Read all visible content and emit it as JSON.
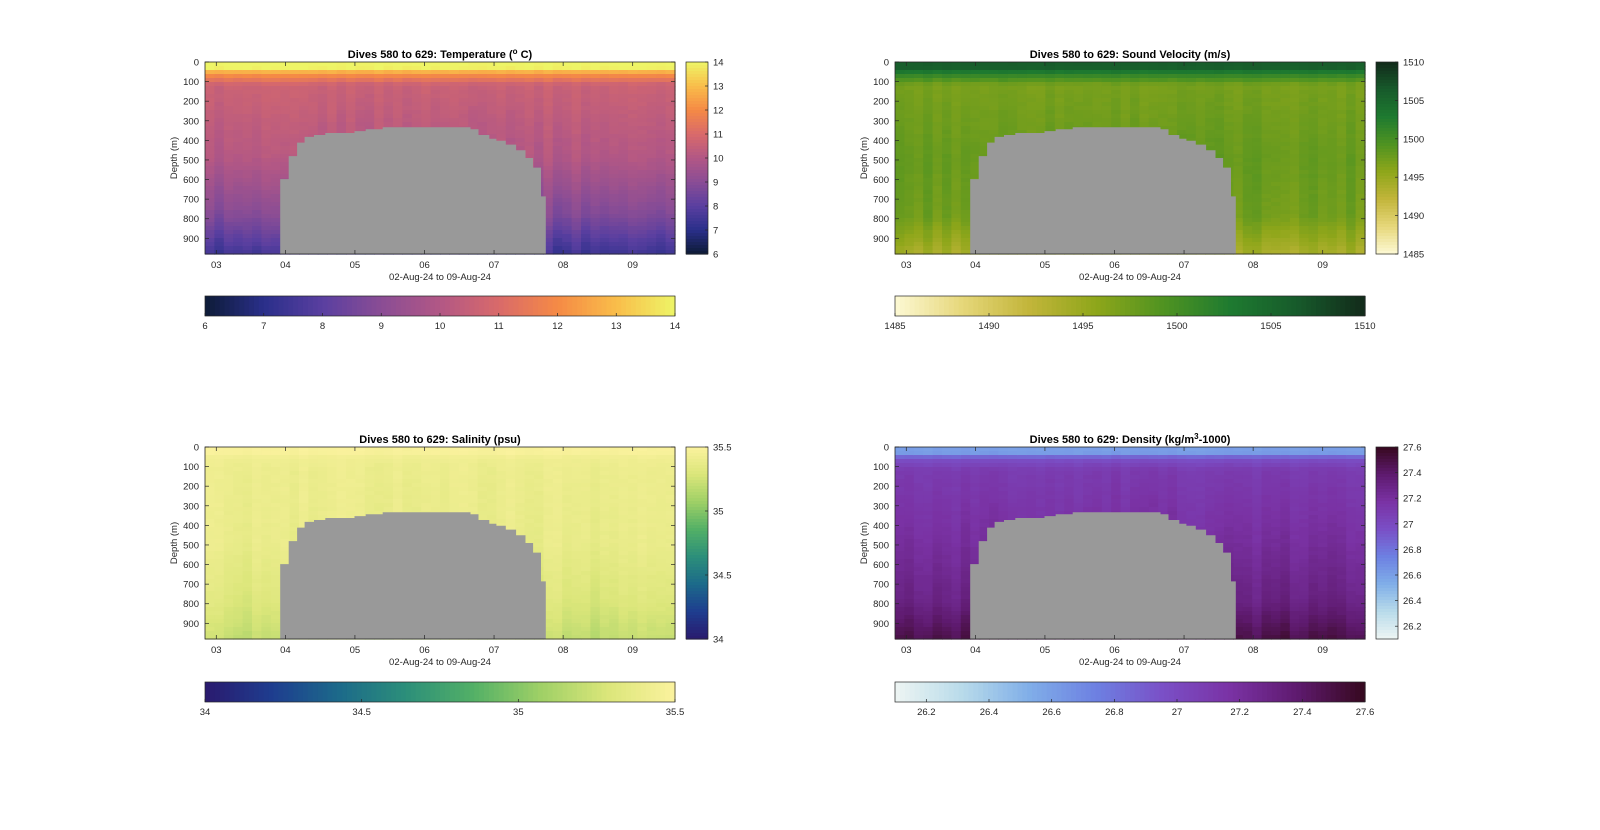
{
  "figure": {
    "panels": [
      "temperature",
      "sound_velocity",
      "salinity",
      "density"
    ]
  },
  "chart_data": [
    {
      "id": "temperature",
      "type": "heatmap",
      "title": "Dives 580 to 629: Temperature (",
      "title_sup": "o",
      "title_tail": " C)",
      "ylabel": "Depth (m)",
      "xlabel": "02-Aug-24 to 09-Aug-24",
      "x_ticks": [
        "03",
        "04",
        "05",
        "06",
        "07",
        "08",
        "09"
      ],
      "y_ticks": [
        "0",
        "100",
        "200",
        "300",
        "400",
        "500",
        "600",
        "700",
        "800",
        "900"
      ],
      "ylim": [
        0,
        980
      ],
      "clim": [
        6,
        14
      ],
      "side_colorbar_ticks": [
        "6",
        "7",
        "8",
        "9",
        "10",
        "11",
        "12",
        "13",
        "14"
      ],
      "bottom_colorbar_ticks": [
        "6",
        "7",
        "8",
        "9",
        "10",
        "11",
        "12",
        "13",
        "14"
      ],
      "colormap": [
        "#0d1b36",
        "#2a2f8a",
        "#5a3fa0",
        "#8a4d95",
        "#b25785",
        "#d96a6a",
        "#f58a45",
        "#f9bd4a",
        "#eef567"
      ],
      "profile": {
        "surface": 14,
        "mixed": 12.3,
        "thermocline": 10.6,
        "mid": 10.0,
        "deep": 8.8,
        "bottom": 7.4
      },
      "mask_color": "#999999"
    },
    {
      "id": "sound_velocity",
      "type": "heatmap",
      "title": "Dives 580 to 629: Sound Velocity (m/s)",
      "title_sup": "",
      "title_tail": "",
      "ylabel": "Depth (m)",
      "xlabel": "02-Aug-24 to 09-Aug-24",
      "x_ticks": [
        "03",
        "04",
        "05",
        "06",
        "07",
        "08",
        "09"
      ],
      "y_ticks": [
        "0",
        "100",
        "200",
        "300",
        "400",
        "500",
        "600",
        "700",
        "800",
        "900"
      ],
      "ylim": [
        0,
        980
      ],
      "clim": [
        1485,
        1510
      ],
      "side_colorbar_ticks": [
        "1485",
        "1490",
        "1495",
        "1500",
        "1505",
        "1510"
      ],
      "bottom_colorbar_ticks": [
        "1485",
        "1490",
        "1495",
        "1500",
        "1505",
        "1510"
      ],
      "colormap": [
        "#fdf9d4",
        "#e6d77a",
        "#c2b53a",
        "#8ea61a",
        "#4f9321",
        "#1e7a30",
        "#175a2b",
        "#122a1a"
      ],
      "profile": {
        "surface": 1506,
        "mixed": 1502,
        "thermocline": 1497,
        "mid": 1498,
        "deep": 1497.5,
        "bottom": 1494
      },
      "mask_color": "#999999"
    },
    {
      "id": "salinity",
      "type": "heatmap",
      "title": "Dives 580 to 629: Salinity (psu)",
      "title_sup": "",
      "title_tail": "",
      "ylabel": "Depth (m)",
      "xlabel": "02-Aug-24 to 09-Aug-24",
      "x_ticks": [
        "03",
        "04",
        "05",
        "06",
        "07",
        "08",
        "09"
      ],
      "y_ticks": [
        "0",
        "100",
        "200",
        "300",
        "400",
        "500",
        "600",
        "700",
        "800",
        "900"
      ],
      "ylim": [
        0,
        980
      ],
      "clim": [
        34,
        35.5
      ],
      "side_colorbar_ticks": [
        "34",
        "34.5",
        "35",
        "35.5"
      ],
      "bottom_colorbar_ticks": [
        "34",
        "34.5",
        "35",
        "35.5"
      ],
      "colormap": [
        "#2a1a6e",
        "#1e3d8f",
        "#1c6a8a",
        "#2c8f7a",
        "#53b066",
        "#9fd066",
        "#dbe67a",
        "#fbf29e"
      ],
      "profile": {
        "surface": 35.48,
        "mixed": 35.42,
        "thermocline": 35.4,
        "mid": 35.38,
        "deep": 35.3,
        "bottom": 35.2
      },
      "mask_color": "#999999"
    },
    {
      "id": "density",
      "type": "heatmap",
      "title": "Dives 580 to 629: Density (kg/m",
      "title_sup": "3",
      "title_tail": "-1000)",
      "ylabel": "Depth (m)",
      "xlabel": "02-Aug-24 to 09-Aug-24",
      "x_ticks": [
        "03",
        "04",
        "05",
        "06",
        "07",
        "08",
        "09"
      ],
      "y_ticks": [
        "0",
        "100",
        "200",
        "300",
        "400",
        "500",
        "600",
        "700",
        "800",
        "900"
      ],
      "ylim": [
        0,
        980
      ],
      "clim": [
        26.1,
        27.6
      ],
      "side_colorbar_ticks": [
        "26.2",
        "26.4",
        "26.6",
        "26.8",
        "27",
        "27.2",
        "27.4",
        "27.6"
      ],
      "bottom_colorbar_ticks": [
        "26.2",
        "26.4",
        "26.6",
        "26.8",
        "27",
        "27.2",
        "27.4",
        "27.6"
      ],
      "colormap": [
        "#eef5f3",
        "#b8dbea",
        "#80aee8",
        "#6d80e2",
        "#7a4fc6",
        "#7a32a4",
        "#5e1a6e",
        "#36081e"
      ],
      "profile": {
        "surface": 26.6,
        "mixed": 26.95,
        "thermocline": 27.1,
        "mid": 27.2,
        "deep": 27.3,
        "bottom": 27.48
      },
      "mask_color": "#999999"
    }
  ]
}
